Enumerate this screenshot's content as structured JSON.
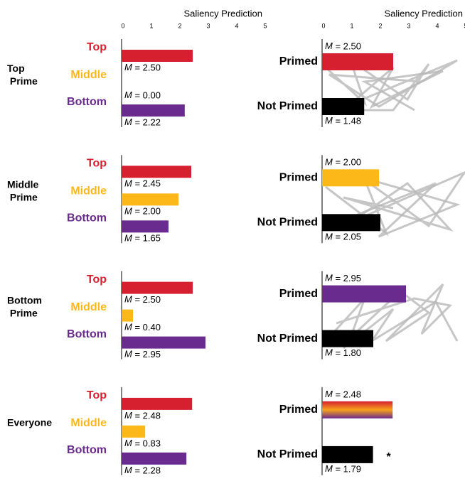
{
  "chart_data": {
    "type": "bar",
    "orientation": "horizontal",
    "xlabel": "Saliency Prediction",
    "xlim": [
      0,
      5
    ],
    "xticks": [
      0,
      1,
      2,
      3,
      4,
      5
    ],
    "colors": [
      "#d7202f",
      "#fbb818",
      "#6a2b8e"
    ],
    "groups": [
      {
        "name": "Top Prime",
        "categories": [
          "Top",
          "Middle",
          "Bottom"
        ],
        "values": [
          2.5,
          0,
          2.22
        ],
        "value_labels": [
          "M = 2.50",
          "M = 0.00",
          "M = 2.22"
        ],
        "primed": {
          "categories": [
            "Primed",
            "Not Primed"
          ],
          "values": [
            2.5,
            1.48
          ],
          "value_labels": [
            "M = 2.50",
            "M = 1.48"
          ],
          "colors": [
            "#d7202f",
            "#000000"
          ]
        }
      },
      {
        "name": "Middle Prime",
        "categories": [
          "Top",
          "Middle",
          "Bottom"
        ],
        "values": [
          2.45,
          2.0,
          1.65
        ],
        "value_labels": [
          "M = 2.45",
          "M = 2.00",
          "M = 1.65"
        ],
        "primed": {
          "categories": [
            "Primed",
            "Not Primed"
          ],
          "values": [
            2.0,
            2.05
          ],
          "value_labels": [
            "M = 2.00",
            "M = 2.05"
          ],
          "colors": [
            "#fbb818",
            "#000000"
          ]
        }
      },
      {
        "name": "Bottom Prime",
        "categories": [
          "Top",
          "Middle",
          "Bottom"
        ],
        "values": [
          2.5,
          0.4,
          2.95
        ],
        "value_labels": [
          "M = 2.50",
          "M = 0.40",
          "M = 2.95"
        ],
        "primed": {
          "categories": [
            "Primed",
            "Not Primed"
          ],
          "values": [
            2.95,
            1.8
          ],
          "value_labels": [
            "M = 2.95",
            "M = 1.80"
          ],
          "colors": [
            "#6a2b8e",
            "#000000"
          ]
        }
      },
      {
        "name": "Everyone",
        "categories": [
          "Top",
          "Middle",
          "Bottom"
        ],
        "values": [
          2.48,
          0.83,
          2.28
        ],
        "value_labels": [
          "M = 2.48",
          "M = 0.83",
          "M = 2.28"
        ],
        "primed": {
          "categories": [
            "Primed",
            "Not Primed"
          ],
          "values": [
            2.48,
            1.79
          ],
          "value_labels": [
            "M = 2.48",
            "M = 1.79"
          ],
          "colors": [
            [
              "#d7202f",
              "#f7a21b",
              "#6a2b8e"
            ],
            "#000000"
          ],
          "annotation": "*"
        }
      }
    ]
  }
}
